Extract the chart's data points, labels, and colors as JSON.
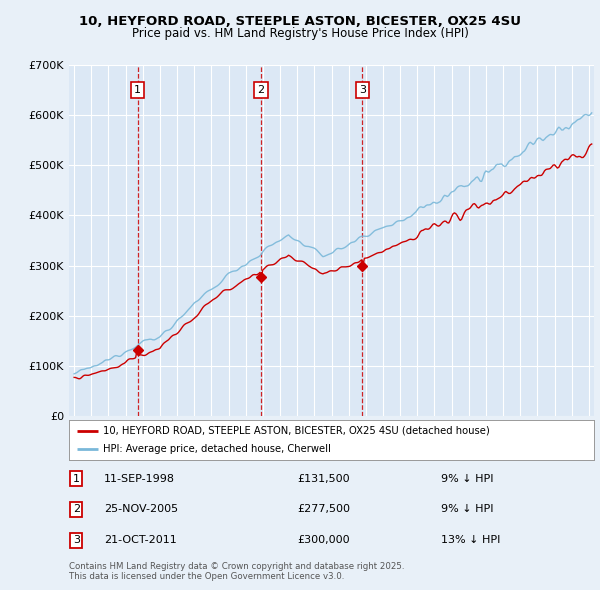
{
  "title_line1": "10, HEYFORD ROAD, STEEPLE ASTON, BICESTER, OX25 4SU",
  "title_line2": "Price paid vs. HM Land Registry's House Price Index (HPI)",
  "background_color": "#e8f0f8",
  "plot_bg_color": "#dce8f5",
  "grid_color": "#ffffff",
  "hpi_color": "#7ab8d9",
  "price_color": "#cc0000",
  "sale_line_color": "#cc0000",
  "ylim": [
    0,
    700000
  ],
  "yticks": [
    0,
    100000,
    200000,
    300000,
    400000,
    500000,
    600000,
    700000
  ],
  "ytick_labels": [
    "£0",
    "£100K",
    "£200K",
    "£300K",
    "£400K",
    "£500K",
    "£600K",
    "£700K"
  ],
  "xmin": 1994.7,
  "xmax": 2025.3,
  "sales": [
    {
      "date": "11-SEP-1998",
      "price": 131500,
      "label": "1",
      "x_year": 1998.7
    },
    {
      "date": "25-NOV-2005",
      "price": 277500,
      "label": "2",
      "x_year": 2005.9
    },
    {
      "date": "21-OCT-2011",
      "price": 300000,
      "label": "3",
      "x_year": 2011.8
    }
  ],
  "legend_line1": "10, HEYFORD ROAD, STEEPLE ASTON, BICESTER, OX25 4SU (detached house)",
  "legend_line2": "HPI: Average price, detached house, Cherwell",
  "footer": "Contains HM Land Registry data © Crown copyright and database right 2025.\nThis data is licensed under the Open Government Licence v3.0.",
  "table_rows": [
    {
      "label": "1",
      "date": "11-SEP-1998",
      "price": "£131,500",
      "note": "9% ↓ HPI"
    },
    {
      "label": "2",
      "date": "25-NOV-2005",
      "price": "£277,500",
      "note": "9% ↓ HPI"
    },
    {
      "label": "3",
      "date": "21-OCT-2011",
      "price": "£300,000",
      "note": "13% ↓ HPI"
    }
  ]
}
